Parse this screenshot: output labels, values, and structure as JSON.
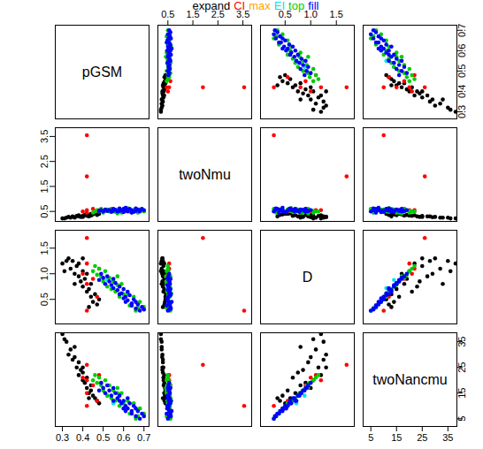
{
  "chart_data": {
    "type": "scatter_matrix",
    "variables": [
      {
        "name": "pGSM",
        "lim": [
          0.265,
          0.725
        ],
        "ticks": [
          0.3,
          0.4,
          0.5,
          0.6,
          0.7
        ]
      },
      {
        "name": "twoNmu",
        "lim": [
          0.1,
          3.85
        ],
        "ticks": [
          0.5,
          1.5,
          2.5,
          3.5
        ]
      },
      {
        "name": "D",
        "lim": [
          0.02,
          1.85
        ],
        "ticks": [
          0.5,
          {
            "value": 1,
            "label": "1.0"
          },
          1.5
        ]
      },
      {
        "name": "twoNancmu",
        "lim": [
          2,
          38.5
        ],
        "ticks": [
          5,
          15,
          25,
          35
        ]
      }
    ],
    "series": [
      {
        "name": "expand",
        "color": "#000000",
        "values": [
          [
            0.3,
            0.22,
            1.2,
            38
          ],
          [
            0.32,
            0.25,
            1.25,
            35
          ],
          [
            0.33,
            0.28,
            1.3,
            30
          ],
          [
            0.34,
            0.25,
            1.1,
            32
          ],
          [
            0.35,
            0.3,
            1.25,
            28
          ],
          [
            0.36,
            0.27,
            1.0,
            29
          ],
          [
            0.37,
            0.32,
            1.15,
            25
          ],
          [
            0.38,
            0.3,
            0.95,
            27
          ],
          [
            0.38,
            0.35,
            1.2,
            22
          ],
          [
            0.39,
            0.28,
            0.85,
            24
          ],
          [
            0.4,
            0.33,
            1.05,
            20
          ],
          [
            0.4,
            0.3,
            0.75,
            23
          ],
          [
            0.41,
            0.36,
            0.9,
            19
          ],
          [
            0.42,
            0.32,
            0.65,
            21
          ],
          [
            0.42,
            0.38,
            1.0,
            17
          ],
          [
            0.43,
            0.35,
            0.7,
            15
          ],
          [
            0.44,
            0.4,
            0.55,
            16
          ],
          [
            0.44,
            0.33,
            0.8,
            18
          ],
          [
            0.45,
            0.38,
            0.45,
            14
          ],
          [
            0.46,
            0.42,
            0.6,
            13
          ],
          [
            0.47,
            0.36,
            0.4,
            12
          ],
          [
            0.48,
            0.4,
            0.5,
            11
          ],
          [
            0.43,
            0.3,
            0.35,
            13
          ],
          [
            0.36,
            0.25,
            0.8,
            33
          ],
          [
            0.31,
            0.22,
            1.05,
            36
          ],
          [
            0.4,
            0.28,
            1.3,
            25
          ]
        ]
      },
      {
        "name": "CI",
        "color": "#ff0000",
        "values": [
          [
            0.42,
            3.55,
            0.28,
            10
          ],
          [
            0.42,
            1.9,
            1.7,
            26
          ],
          [
            0.42,
            0.55,
            1.2,
            20
          ],
          [
            0.4,
            0.5,
            1.0,
            21
          ],
          [
            0.45,
            0.6,
            0.9,
            18
          ],
          [
            0.48,
            0.55,
            1.1,
            22
          ],
          [
            0.42,
            0.45,
            0.8,
            15
          ],
          [
            0.47,
            0.5,
            0.55,
            12
          ]
        ]
      },
      {
        "name": "max",
        "color": "#ffa500",
        "values": [
          [
            0.5,
            0.52,
            0.9,
            17
          ]
        ]
      },
      {
        "name": "EI",
        "color": "#00e5ee",
        "values": [
          [
            0.55,
            0.5,
            0.72,
            11
          ],
          [
            0.52,
            0.55,
            0.88,
            14
          ]
        ]
      },
      {
        "name": "top",
        "color": "#00cd00",
        "values": [
          [
            0.7,
            0.5,
            0.35,
            7
          ],
          [
            0.68,
            0.58,
            0.45,
            9
          ],
          [
            0.67,
            0.45,
            0.33,
            6
          ],
          [
            0.65,
            0.55,
            0.55,
            11
          ],
          [
            0.63,
            0.5,
            0.38,
            7
          ],
          [
            0.62,
            0.63,
            0.62,
            12
          ],
          [
            0.6,
            0.52,
            0.6,
            11
          ],
          [
            0.59,
            0.45,
            0.8,
            15
          ],
          [
            0.58,
            0.58,
            0.55,
            10
          ],
          [
            0.57,
            0.55,
            0.78,
            15
          ],
          [
            0.56,
            0.48,
            0.65,
            12
          ],
          [
            0.55,
            0.52,
            0.85,
            16
          ],
          [
            0.54,
            0.6,
            0.7,
            13
          ],
          [
            0.53,
            0.5,
            0.92,
            18
          ],
          [
            0.52,
            0.58,
            0.75,
            14
          ],
          [
            0.51,
            0.52,
            1.05,
            20
          ],
          [
            0.5,
            0.45,
            0.85,
            16
          ],
          [
            0.49,
            0.6,
            0.95,
            18
          ],
          [
            0.48,
            0.5,
            1.1,
            21
          ],
          [
            0.47,
            0.55,
            0.98,
            19
          ],
          [
            0.46,
            0.5,
            1.15,
            22
          ],
          [
            0.45,
            0.45,
            1.05,
            20
          ],
          [
            0.66,
            0.6,
            0.28,
            5
          ],
          [
            0.57,
            0.42,
            0.95,
            17
          ]
        ]
      },
      {
        "name": "fill",
        "color": "#0000ff",
        "values": [
          [
            0.7,
            0.55,
            0.3,
            6
          ],
          [
            0.69,
            0.6,
            0.35,
            7
          ],
          [
            0.68,
            0.5,
            0.28,
            5
          ],
          [
            0.67,
            0.58,
            0.4,
            8
          ],
          [
            0.66,
            0.52,
            0.45,
            9
          ],
          [
            0.66,
            0.62,
            0.32,
            6
          ],
          [
            0.65,
            0.48,
            0.5,
            10
          ],
          [
            0.64,
            0.55,
            0.42,
            8
          ],
          [
            0.63,
            0.6,
            0.58,
            11
          ],
          [
            0.62,
            0.5,
            0.48,
            9
          ],
          [
            0.62,
            0.57,
            0.65,
            13
          ],
          [
            0.61,
            0.53,
            0.55,
            10
          ],
          [
            0.6,
            0.6,
            0.7,
            12
          ],
          [
            0.6,
            0.47,
            0.52,
            9
          ],
          [
            0.59,
            0.55,
            0.62,
            11
          ],
          [
            0.58,
            0.52,
            0.75,
            14
          ],
          [
            0.58,
            0.62,
            0.6,
            12
          ],
          [
            0.57,
            0.5,
            0.68,
            13
          ],
          [
            0.56,
            0.57,
            0.82,
            15
          ],
          [
            0.55,
            0.53,
            0.72,
            12
          ],
          [
            0.55,
            0.6,
            0.9,
            17
          ],
          [
            0.54,
            0.48,
            0.78,
            14
          ],
          [
            0.53,
            0.56,
            0.85,
            16
          ],
          [
            0.52,
            0.52,
            0.95,
            18
          ],
          [
            0.51,
            0.58,
            0.8,
            15
          ],
          [
            0.5,
            0.5,
            0.92,
            17
          ],
          [
            0.49,
            0.55,
            1.0,
            19
          ],
          [
            0.48,
            0.52,
            0.88,
            16
          ],
          [
            0.64,
            0.45,
            0.38,
            7
          ],
          [
            0.61,
            0.65,
            0.45,
            8
          ]
        ]
      }
    ]
  }
}
